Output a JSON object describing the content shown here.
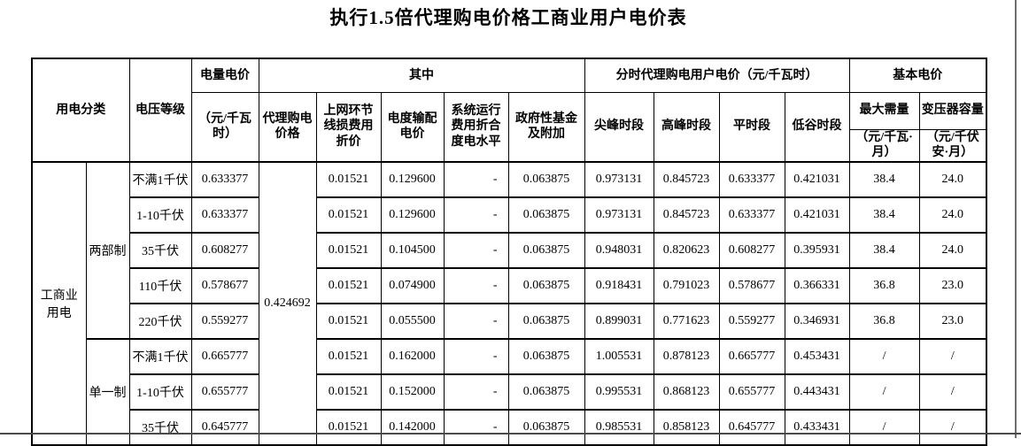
{
  "title": "执行1.5倍代理购电价格工商业用户电价表",
  "table": {
    "header": {
      "usage_category": "用电分类",
      "voltage_level": "电压等级",
      "energy_price": "电量电价",
      "energy_price_unit": "（元/千瓦时）",
      "among_which": "其中",
      "agency_price": "代理购电价格",
      "grid_loss": "上网环节线损费用折价",
      "transmission_price": "电度输配电价",
      "system_operation": "系统运行费用折合度电水平",
      "gov_funds": "政府性基金及附加",
      "tou_group": "分时代理购电用户电价（元/千瓦时）",
      "sharp_peak": "尖峰时段",
      "peak": "高峰时段",
      "flat": "平时段",
      "valley": "低谷时段",
      "basic_price": "基本电价",
      "max_demand": "最大需量",
      "max_demand_unit": "（元/千瓦·月）",
      "transformer_capacity": "变压器容量",
      "transformer_capacity_unit": "（元/千伏安·月）"
    },
    "category_label": "工商业用电",
    "agency_price_value": "0.424692",
    "groups": [
      {
        "label": "两部制",
        "rows": [
          {
            "voltage": "不满1千伏",
            "energy_price": "0.633377",
            "grid_loss": "0.01521",
            "transmission": "0.129600",
            "system_operation": "-",
            "gov_funds": "0.063875",
            "sharp_peak": "0.973131",
            "peak": "0.845723",
            "flat": "0.633377",
            "valley": "0.421031",
            "max_demand": "38.4",
            "transformer_capacity": "24.0"
          },
          {
            "voltage": "1-10千伏",
            "energy_price": "0.633377",
            "grid_loss": "0.01521",
            "transmission": "0.129600",
            "system_operation": "-",
            "gov_funds": "0.063875",
            "sharp_peak": "0.973131",
            "peak": "0.845723",
            "flat": "0.633377",
            "valley": "0.421031",
            "max_demand": "38.4",
            "transformer_capacity": "24.0"
          },
          {
            "voltage": "35千伏",
            "energy_price": "0.608277",
            "grid_loss": "0.01521",
            "transmission": "0.104500",
            "system_operation": "-",
            "gov_funds": "0.063875",
            "sharp_peak": "0.948031",
            "peak": "0.820623",
            "flat": "0.608277",
            "valley": "0.395931",
            "max_demand": "38.4",
            "transformer_capacity": "24.0"
          },
          {
            "voltage": "110千伏",
            "energy_price": "0.578677",
            "grid_loss": "0.01521",
            "transmission": "0.074900",
            "system_operation": "-",
            "gov_funds": "0.063875",
            "sharp_peak": "0.918431",
            "peak": "0.791023",
            "flat": "0.578677",
            "valley": "0.366331",
            "max_demand": "36.8",
            "transformer_capacity": "23.0"
          },
          {
            "voltage": "220千伏",
            "energy_price": "0.559277",
            "grid_loss": "0.01521",
            "transmission": "0.055500",
            "system_operation": "-",
            "gov_funds": "0.063875",
            "sharp_peak": "0.899031",
            "peak": "0.771623",
            "flat": "0.559277",
            "valley": "0.346931",
            "max_demand": "36.8",
            "transformer_capacity": "23.0"
          }
        ]
      },
      {
        "label": "单一制",
        "rows": [
          {
            "voltage": "不满1千伏",
            "energy_price": "0.665777",
            "grid_loss": "0.01521",
            "transmission": "0.162000",
            "system_operation": "-",
            "gov_funds": "0.063875",
            "sharp_peak": "1.005531",
            "peak": "0.878123",
            "flat": "0.665777",
            "valley": "0.453431",
            "max_demand": "/",
            "transformer_capacity": "/"
          },
          {
            "voltage": "1-10千伏",
            "energy_price": "0.655777",
            "grid_loss": "0.01521",
            "transmission": "0.152000",
            "system_operation": "-",
            "gov_funds": "0.063875",
            "sharp_peak": "0.995531",
            "peak": "0.868123",
            "flat": "0.655777",
            "valley": "0.443431",
            "max_demand": "/",
            "transformer_capacity": "/"
          },
          {
            "voltage": "35千伏",
            "energy_price": "0.645777",
            "grid_loss": "0.01521",
            "transmission": "0.142000",
            "system_operation": "-",
            "gov_funds": "0.063875",
            "sharp_peak": "0.985531",
            "peak": "0.858123",
            "flat": "0.645777",
            "valley": "0.433431",
            "max_demand": "/",
            "transformer_capacity": "/"
          }
        ]
      }
    ]
  }
}
